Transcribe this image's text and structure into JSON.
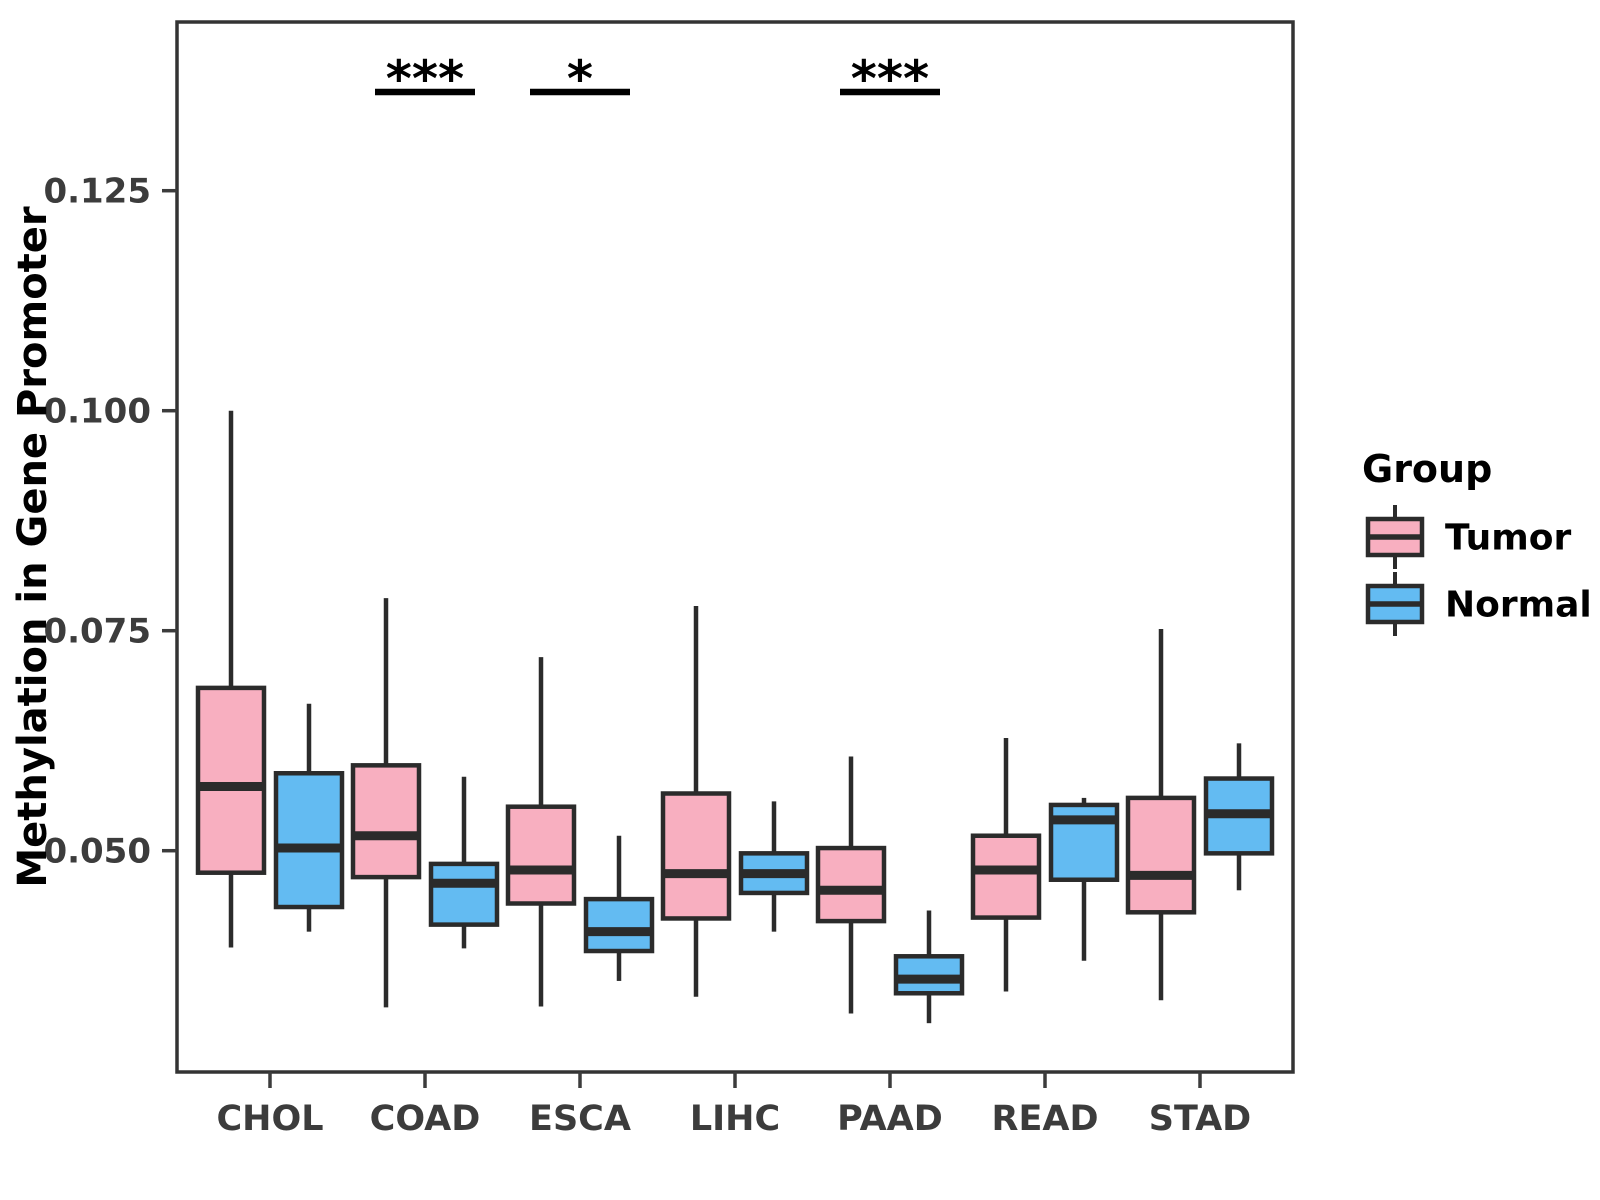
{
  "figure": {
    "ylabel": "Methylation in Gene Promoter",
    "legend_title": "Group"
  },
  "chart_data": {
    "type": "boxplot",
    "title": "",
    "xlabel": "",
    "ylabel": "Methylation in Gene Promoter",
    "categories": [
      "CHOL",
      "COAD",
      "ESCA",
      "LIHC",
      "PAAD",
      "READ",
      "STAD"
    ],
    "ytick_labels": [
      "0.125",
      "0.100",
      "0.075",
      "0.050"
    ],
    "ytick_values": [
      0.125,
      0.1,
      0.075,
      0.05
    ],
    "ylim": [
      0.0249,
      0.1442
    ],
    "grid": false,
    "legend_position": "right",
    "legend": {
      "title": "Group",
      "entries": [
        {
          "label": "Tumor",
          "color": "#F8AFC0"
        },
        {
          "label": "Normal",
          "color": "#63BBF2"
        }
      ]
    },
    "colors": {
      "tumor_fill": "#F8AFC0",
      "normal_fill": "#63BBF2",
      "box_stroke": "#2B2B2B",
      "axis_text": "#3C3C3C",
      "panel_border": "#333333",
      "sig_color": "#000000"
    },
    "series": [
      {
        "name": "Tumor",
        "color": "#F8AFC0",
        "boxes": [
          {
            "category": "CHOL",
            "min": 0.039,
            "q1": 0.0475,
            "median": 0.0573,
            "q3": 0.0685,
            "max": 0.1
          },
          {
            "category": "COAD",
            "min": 0.0322,
            "q1": 0.047,
            "median": 0.0517,
            "q3": 0.0597,
            "max": 0.0787
          },
          {
            "category": "ESCA",
            "min": 0.0323,
            "q1": 0.044,
            "median": 0.0478,
            "q3": 0.055,
            "max": 0.072
          },
          {
            "category": "LIHC",
            "min": 0.0334,
            "q1": 0.0423,
            "median": 0.0474,
            "q3": 0.0565,
            "max": 0.0778
          },
          {
            "category": "PAAD",
            "min": 0.0315,
            "q1": 0.042,
            "median": 0.0455,
            "q3": 0.0503,
            "max": 0.0607
          },
          {
            "category": "READ",
            "min": 0.034,
            "q1": 0.0424,
            "median": 0.0478,
            "q3": 0.0517,
            "max": 0.0628
          },
          {
            "category": "STAD",
            "min": 0.033,
            "q1": 0.043,
            "median": 0.0472,
            "q3": 0.056,
            "max": 0.0752
          }
        ]
      },
      {
        "name": "Normal",
        "color": "#63BBF2",
        "boxes": [
          {
            "category": "CHOL",
            "min": 0.0408,
            "q1": 0.0436,
            "median": 0.0503,
            "q3": 0.0588,
            "max": 0.0667
          },
          {
            "category": "COAD",
            "min": 0.0389,
            "q1": 0.0416,
            "median": 0.0463,
            "q3": 0.0485,
            "max": 0.0584
          },
          {
            "category": "ESCA",
            "min": 0.0352,
            "q1": 0.0386,
            "median": 0.0408,
            "q3": 0.0445,
            "max": 0.0517
          },
          {
            "category": "LIHC",
            "min": 0.0408,
            "q1": 0.0452,
            "median": 0.0474,
            "q3": 0.0497,
            "max": 0.0556
          },
          {
            "category": "PAAD",
            "min": 0.0304,
            "q1": 0.0338,
            "median": 0.0354,
            "q3": 0.038,
            "max": 0.0432
          },
          {
            "category": "READ",
            "min": 0.0375,
            "q1": 0.0467,
            "median": 0.0535,
            "q3": 0.0552,
            "max": 0.056
          },
          {
            "category": "STAD",
            "min": 0.0455,
            "q1": 0.0497,
            "median": 0.0542,
            "q3": 0.0582,
            "max": 0.0622
          }
        ]
      }
    ],
    "significance": [
      {
        "category": "COAD",
        "label": "***"
      },
      {
        "category": "ESCA",
        "label": "*"
      },
      {
        "category": "PAAD",
        "label": "***"
      }
    ]
  }
}
